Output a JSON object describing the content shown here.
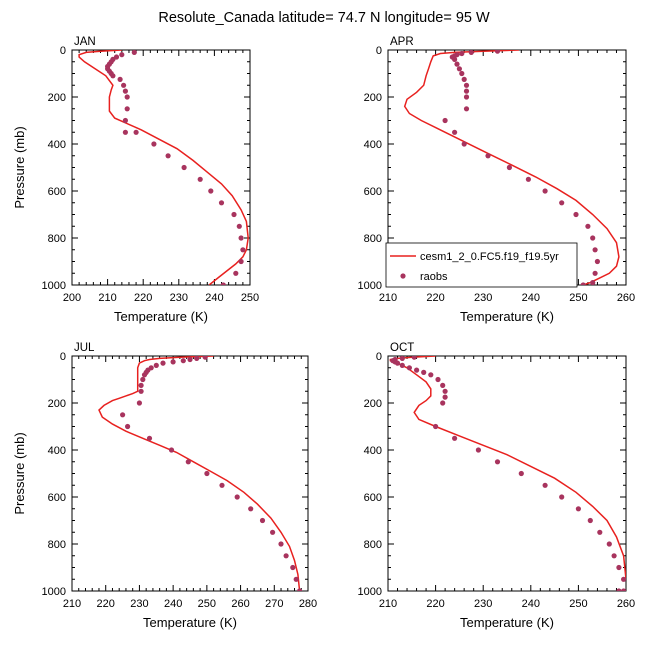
{
  "title": "Resolute_Canada  latitude= 74.7 N longitude= 95 W",
  "legend": {
    "model": "cesm1_2_0.FC5.f19_f19.5yr",
    "obs": "raobs"
  },
  "colors": {
    "model": "#e8211f",
    "obs": "#a8345e"
  },
  "chart_data": [
    {
      "type": "line",
      "panel": "JAN",
      "title": "JAN",
      "xlabel": "Temperature (K)",
      "ylabel": "Pressure (mb)",
      "xlim": [
        200,
        250
      ],
      "ylim": [
        0,
        1000
      ],
      "y_inverted": true,
      "xticks": [
        200,
        210,
        220,
        230,
        240,
        250
      ],
      "yticks": [
        0,
        200,
        400,
        600,
        800,
        1000
      ],
      "series": [
        {
          "name": "cesm1_2_0.FC5.f19_f19.5yr",
          "style": "line",
          "x": [
            214,
            208,
            204,
            202,
            202,
            203.5,
            206.5,
            209.5,
            211.5,
            211,
            210.5,
            210.5,
            210.5,
            212,
            215,
            219.5,
            224.5,
            229.5,
            234,
            238,
            242,
            245,
            247.5,
            249,
            249.5,
            249,
            248,
            246,
            243.5,
            241,
            238.5
          ],
          "y": [
            0,
            5,
            10,
            20,
            30,
            50,
            80,
            110,
            150,
            170,
            200,
            230,
            260,
            290,
            310,
            340,
            380,
            420,
            470,
            520,
            570,
            620,
            680,
            730,
            800,
            850,
            880,
            910,
            940,
            970,
            1000
          ]
        },
        {
          "name": "raobs",
          "style": "points",
          "x": [
            217.5,
            214,
            212.5,
            211.5,
            211,
            210.5,
            210,
            210,
            210.5,
            211,
            211.5,
            213.5,
            214.5,
            215,
            215.5,
            215.5,
            215,
            215,
            218,
            223,
            227,
            231.5,
            236,
            239,
            242,
            245.5,
            247,
            247.5,
            248,
            247.5,
            246,
            242.5
          ],
          "y": [
            10,
            20,
            30,
            40,
            50,
            60,
            70,
            80,
            90,
            100,
            110,
            125,
            150,
            175,
            200,
            250,
            300,
            350,
            350,
            400,
            450,
            500,
            550,
            600,
            650,
            700,
            750,
            800,
            850,
            900,
            950,
            1000
          ]
        }
      ]
    },
    {
      "type": "line",
      "panel": "APR",
      "title": "APR",
      "xlabel": "Temperature (K)",
      "ylabel": "",
      "xlim": [
        210,
        260
      ],
      "ylim": [
        0,
        1000
      ],
      "y_inverted": true,
      "xticks": [
        210,
        220,
        230,
        240,
        250,
        260
      ],
      "yticks": [
        0,
        200,
        400,
        600,
        800,
        1000
      ],
      "series": [
        {
          "name": "cesm1_2_0.FC5.f19_f19.5yr",
          "style": "line",
          "x": [
            237.5,
            230,
            224,
            221,
            219.5,
            219,
            218.5,
            218,
            217.5,
            216,
            214,
            213.5,
            214.5,
            217,
            221,
            226,
            231,
            236,
            241,
            245.5,
            249.5,
            253,
            256,
            258,
            258.5,
            258,
            256.5,
            254.5,
            252.5,
            251
          ],
          "y": [
            0,
            5,
            10,
            15,
            25,
            50,
            80,
            110,
            150,
            180,
            210,
            240,
            270,
            300,
            340,
            390,
            440,
            490,
            540,
            590,
            640,
            700,
            760,
            820,
            880,
            920,
            950,
            970,
            990,
            1000
          ]
        },
        {
          "name": "raobs",
          "style": "points",
          "x": [
            233,
            227.5,
            225.5,
            224.5,
            224,
            223.5,
            224,
            224.5,
            225,
            225.5,
            226,
            226.5,
            226.5,
            226.5,
            226.5,
            222,
            224,
            226,
            231,
            235.5,
            239.5,
            243,
            246.5,
            249.5,
            252,
            253,
            253.5,
            254,
            253.5,
            253,
            251
          ],
          "y": [
            5,
            10,
            15,
            20,
            25,
            30,
            40,
            60,
            80,
            100,
            125,
            150,
            175,
            200,
            250,
            300,
            350,
            400,
            450,
            500,
            550,
            600,
            650,
            700,
            750,
            800,
            850,
            900,
            950,
            990,
            1000
          ]
        }
      ]
    },
    {
      "type": "line",
      "panel": "JUL",
      "title": "JUL",
      "xlabel": "Temperature (K)",
      "ylabel": "Pressure (mb)",
      "xlim": [
        210,
        280
      ],
      "ylim": [
        0,
        1000
      ],
      "y_inverted": true,
      "xticks": [
        210,
        220,
        230,
        240,
        250,
        260,
        270,
        280
      ],
      "yticks": [
        0,
        200,
        400,
        600,
        800,
        1000
      ],
      "series": [
        {
          "name": "cesm1_2_0.FC5.f19_f19.5yr",
          "style": "line",
          "x": [
            252,
            242,
            236,
            233,
            231.5,
            230,
            229.5,
            229.5,
            229.5,
            228,
            226,
            224,
            222,
            219.5,
            218,
            219,
            222,
            226,
            231,
            236,
            241,
            246,
            251,
            256,
            261,
            265,
            269,
            272,
            274.5,
            276,
            277,
            277.5
          ],
          "y": [
            0,
            5,
            10,
            15,
            20,
            30,
            50,
            80,
            150,
            160,
            170,
            180,
            190,
            210,
            230,
            260,
            290,
            320,
            350,
            380,
            410,
            450,
            490,
            530,
            580,
            630,
            690,
            750,
            810,
            870,
            930,
            1000
          ]
        },
        {
          "name": "raobs",
          "style": "points",
          "x": [
            249.5,
            247,
            245,
            243,
            240,
            237,
            235,
            233.5,
            232.5,
            232,
            231.5,
            231,
            230.5,
            230.5,
            230,
            225,
            226.5,
            233,
            239.5,
            244.5,
            250,
            254.5,
            259,
            263,
            266.5,
            269.5,
            272,
            273.5,
            275.5,
            276.5,
            277.5
          ],
          "y": [
            5,
            10,
            15,
            20,
            25,
            30,
            40,
            50,
            60,
            70,
            80,
            100,
            125,
            150,
            200,
            250,
            300,
            350,
            400,
            450,
            500,
            550,
            600,
            650,
            700,
            750,
            800,
            850,
            900,
            950,
            1000
          ]
        }
      ]
    },
    {
      "type": "line",
      "panel": "OCT",
      "title": "OCT",
      "xlabel": "Temperature (K)",
      "ylabel": "",
      "xlim": [
        210,
        260
      ],
      "ylim": [
        0,
        1000
      ],
      "y_inverted": true,
      "xticks": [
        210,
        220,
        230,
        240,
        250,
        260
      ],
      "yticks": [
        0,
        200,
        400,
        600,
        800,
        1000
      ],
      "series": [
        {
          "name": "cesm1_2_0.FC5.f19_f19.5yr",
          "style": "line",
          "x": [
            220,
            215,
            212,
            210.5,
            210.5,
            212,
            214,
            216,
            218,
            219,
            219,
            218,
            216.5,
            215.5,
            216.5,
            220,
            225,
            230,
            235,
            240,
            245,
            249.5,
            253,
            256,
            258,
            259.5,
            260
          ],
          "y": [
            0,
            5,
            10,
            15,
            20,
            30,
            50,
            80,
            110,
            140,
            170,
            190,
            210,
            240,
            270,
            300,
            340,
            380,
            420,
            470,
            520,
            580,
            640,
            700,
            770,
            850,
            950
          ]
        },
        {
          "name": "raobs",
          "style": "points",
          "x": [
            215.5,
            213,
            211.5,
            211,
            211.5,
            212,
            213,
            214.5,
            216,
            217.5,
            219,
            220.5,
            221.5,
            222,
            222,
            221.5,
            220,
            224,
            229,
            233,
            238,
            243,
            246.5,
            250,
            252.5,
            254.5,
            256.5,
            257.5,
            258.5,
            259.5,
            259.5,
            258.5
          ],
          "y": [
            5,
            10,
            15,
            20,
            25,
            30,
            40,
            50,
            60,
            70,
            80,
            100,
            125,
            150,
            175,
            200,
            300,
            350,
            400,
            450,
            500,
            550,
            600,
            650,
            700,
            750,
            800,
            850,
            900,
            950,
            1000,
            1000
          ]
        }
      ]
    }
  ]
}
